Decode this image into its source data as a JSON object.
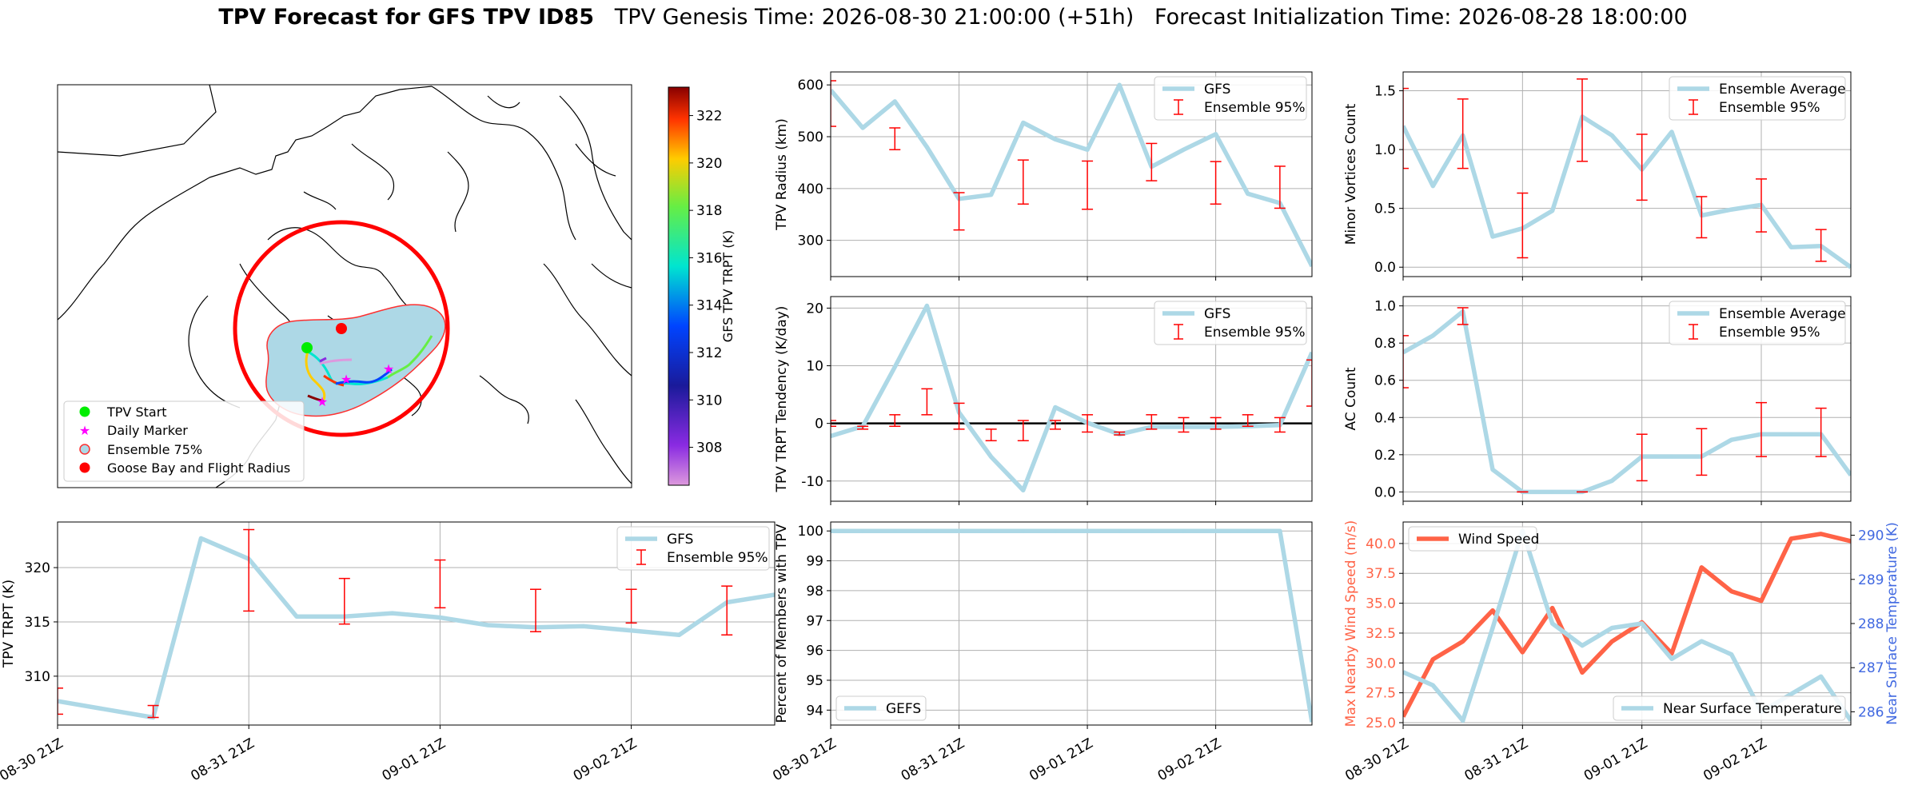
{
  "figure": {
    "title_bold": "TPV Forecast for GFS TPV ID85",
    "title_rest": "TPV Genesis Time: 2026-08-30 21:00:00 (+51h)   Forecast Initialization Time: 2026-08-28 18:00:00"
  },
  "colors": {
    "gfs_line": "#add8e6",
    "ensemble_bar": "#ff0000",
    "wind": "#ff6347",
    "temp_axis": "#4169e1",
    "circle": "#ff0000",
    "ensemble_fill": "#add8e6"
  },
  "time_ticks": [
    "08-30 21Z",
    "08-31 21Z",
    "09-01 21Z",
    "09-02 21Z"
  ],
  "map": {
    "colorbar_label": "GFS TPV TRPT (K)",
    "colorbar_ticks": [
      308,
      310,
      312,
      314,
      316,
      318,
      320,
      322
    ],
    "colorbar_range": [
      306.4,
      323.2
    ],
    "legend": [
      "TPV Start",
      "Daily Marker",
      "Ensemble 75%",
      "Goose Bay and Flight Radius"
    ]
  },
  "chart_data": [
    {
      "id": "radius",
      "type": "line",
      "ylabel": "TPV Radius (km)",
      "ylim": [
        230,
        625
      ],
      "yticks": [
        300,
        400,
        500,
        600
      ],
      "xlim": [
        0,
        15
      ],
      "grid": true,
      "legend_position": "top-right",
      "series": [
        {
          "name": "GFS",
          "x": [
            0,
            1,
            2,
            3,
            4,
            5,
            6,
            7,
            8,
            9,
            10,
            11,
            12,
            13,
            14,
            15
          ],
          "values": [
            590,
            517,
            568,
            480,
            380,
            388,
            527,
            495,
            475,
            600,
            442,
            475,
            505,
            390,
            372,
            250
          ]
        },
        {
          "name": "Ensemble 95%",
          "type": "errorbar",
          "x": [
            0,
            2,
            4,
            6,
            8,
            10,
            12,
            14
          ],
          "low": [
            520,
            475,
            320,
            370,
            360,
            415,
            370,
            362
          ],
          "high": [
            608,
            517,
            392,
            455,
            453,
            487,
            452,
            443
          ]
        }
      ]
    },
    {
      "id": "minor_vortices",
      "type": "line",
      "ylabel": "Minor Vortices Count",
      "ylim": [
        -0.08,
        1.66
      ],
      "yticks": [
        0.0,
        0.5,
        1.0,
        1.5
      ],
      "xlim": [
        0,
        15
      ],
      "grid": true,
      "legend_position": "top-right",
      "series": [
        {
          "name": "Ensemble Average",
          "x": [
            0,
            1,
            2,
            3,
            4,
            5,
            6,
            7,
            8,
            9,
            10,
            11,
            12,
            13,
            14,
            15
          ],
          "values": [
            1.2,
            0.69,
            1.12,
            0.26,
            0.33,
            0.48,
            1.28,
            1.12,
            0.83,
            1.15,
            0.44,
            0.49,
            0.53,
            0.17,
            0.18,
            0.0
          ]
        },
        {
          "name": "Ensemble 95%",
          "type": "errorbar",
          "x": [
            0,
            2,
            4,
            6,
            8,
            10,
            12,
            14
          ],
          "low": [
            0.84,
            0.84,
            0.08,
            0.9,
            0.57,
            0.25,
            0.3,
            0.05
          ],
          "high": [
            1.52,
            1.43,
            0.63,
            1.6,
            1.13,
            0.6,
            0.75,
            0.32
          ]
        }
      ]
    },
    {
      "id": "trpt_tendency",
      "type": "line",
      "ylabel": "TPV TRPT Tendency (K/day)",
      "ylim": [
        -13.5,
        22
      ],
      "yticks": [
        -10,
        0,
        10,
        20
      ],
      "xlim": [
        0,
        15
      ],
      "grid": true,
      "zero_line": true,
      "legend_position": "top-right",
      "series": [
        {
          "name": "GFS",
          "x": [
            0,
            1,
            2,
            3,
            4,
            5,
            6,
            7,
            8,
            9,
            10,
            11,
            12,
            13,
            14,
            15
          ],
          "values": [
            -2.2,
            -0.5,
            9.8,
            20.4,
            1.9,
            -5.8,
            -11.6,
            2.8,
            0.1,
            -1.9,
            -0.6,
            -0.6,
            -0.6,
            -0.5,
            -0.3,
            12.3
          ]
        },
        {
          "name": "Ensemble 95%",
          "type": "errorbar",
          "x": [
            0,
            1,
            2,
            3,
            4,
            5,
            6,
            7,
            8,
            9,
            10,
            11,
            12,
            13,
            14,
            15
          ],
          "low": [
            -0.5,
            -1.0,
            -0.5,
            1.5,
            -1.0,
            -3.0,
            -3.0,
            -1.0,
            -1.5,
            -2.0,
            -1.0,
            -1.5,
            -1.0,
            -0.5,
            -1.5,
            3.0
          ],
          "high": [
            0.5,
            -0.5,
            1.5,
            6.0,
            3.5,
            -1.0,
            0.5,
            0.5,
            1.5,
            -1.5,
            1.5,
            1.0,
            1.0,
            1.5,
            1.0,
            11.0
          ]
        }
      ]
    },
    {
      "id": "ac_count",
      "type": "line",
      "ylabel": "AC Count",
      "ylim": [
        -0.05,
        1.05
      ],
      "yticks": [
        0.0,
        0.2,
        0.4,
        0.6,
        0.8,
        1.0
      ],
      "xlim": [
        0,
        15
      ],
      "grid": true,
      "legend_position": "top-right",
      "series": [
        {
          "name": "Ensemble Average",
          "x": [
            0,
            1,
            2,
            3,
            4,
            5,
            6,
            7,
            8,
            9,
            10,
            11,
            12,
            13,
            14,
            15
          ],
          "values": [
            0.75,
            0.84,
            0.97,
            0.12,
            0.0,
            0.0,
            0.0,
            0.06,
            0.19,
            0.19,
            0.19,
            0.28,
            0.31,
            0.31,
            0.31,
            0.09
          ]
        },
        {
          "name": "Ensemble 95%",
          "type": "errorbar",
          "x": [
            0,
            2,
            4,
            6,
            8,
            10,
            12,
            14
          ],
          "low": [
            0.56,
            0.9,
            0.0,
            0.0,
            0.06,
            0.09,
            0.19,
            0.19
          ],
          "high": [
            0.84,
            0.99,
            0.0,
            0.0,
            0.31,
            0.34,
            0.48,
            0.45
          ]
        }
      ]
    },
    {
      "id": "tpv_trpt",
      "type": "line",
      "ylabel": "TPV TRPT (K)",
      "ylim": [
        305.5,
        324.2
      ],
      "yticks": [
        310,
        315,
        320
      ],
      "xlim": [
        0,
        15
      ],
      "grid": true,
      "legend_position": "top-right",
      "series": [
        {
          "name": "GFS",
          "x": [
            0,
            2,
            3,
            4,
            5,
            6,
            7,
            8,
            9,
            10,
            11,
            12,
            13,
            14,
            15
          ],
          "values": [
            307.7,
            306.2,
            322.7,
            320.8,
            315.5,
            315.5,
            315.8,
            315.4,
            314.7,
            314.5,
            314.6,
            314.2,
            313.8,
            316.8,
            317.5
          ]
        },
        {
          "name": "Ensemble 95%",
          "type": "errorbar",
          "x": [
            0,
            2,
            4,
            6,
            8,
            10,
            12,
            14
          ],
          "low": [
            306.5,
            306.2,
            316.0,
            314.8,
            316.3,
            314.1,
            314.9,
            313.8
          ],
          "high": [
            308.9,
            307.3,
            323.5,
            319.0,
            320.7,
            318.0,
            318.0,
            318.3
          ]
        }
      ]
    },
    {
      "id": "percent_members",
      "type": "line",
      "ylabel": "Percent of Members with TPV",
      "ylim": [
        93.5,
        100.3
      ],
      "yticks": [
        94,
        95,
        96,
        97,
        98,
        99,
        100
      ],
      "xlim": [
        0,
        15
      ],
      "grid": true,
      "legend_position": "bottom-left",
      "series": [
        {
          "name": "GEFS",
          "x": [
            0,
            1,
            2,
            3,
            4,
            5,
            6,
            7,
            8,
            9,
            10,
            11,
            12,
            13,
            14,
            15
          ],
          "values": [
            100,
            100,
            100,
            100,
            100,
            100,
            100,
            100,
            100,
            100,
            100,
            100,
            100,
            100,
            100,
            93.6
          ]
        }
      ]
    },
    {
      "id": "wind_temp",
      "type": "line",
      "ylabel": "Max Nearby Wind Speed (m/s)",
      "ylabel_right": "Near Surface Temperature (K)",
      "ylim": [
        24.8,
        41.8
      ],
      "yticks": [
        25.0,
        27.5,
        30.0,
        32.5,
        35.0,
        37.5,
        40.0
      ],
      "ylim_right": [
        285.7,
        290.3
      ],
      "yticks_right": [
        286,
        287,
        288,
        289,
        290
      ],
      "xlim": [
        0,
        15
      ],
      "grid": true,
      "series": [
        {
          "name": "Wind Speed",
          "axis": "left",
          "x": [
            0,
            1,
            2,
            3,
            4,
            5,
            6,
            7,
            8,
            9,
            10,
            11,
            12,
            13,
            14,
            15
          ],
          "values": [
            25.5,
            30.3,
            31.8,
            34.4,
            30.9,
            34.6,
            29.2,
            31.8,
            33.4,
            30.8,
            38.0,
            36.0,
            35.2,
            40.4,
            40.8,
            40.2
          ]
        },
        {
          "name": "Near Surface Temperature",
          "axis": "right",
          "x": [
            0,
            1,
            2,
            3,
            4,
            5,
            6,
            7,
            8,
            9,
            10,
            11,
            12,
            13,
            14,
            15
          ],
          "values": [
            286.9,
            286.6,
            285.8,
            287.9,
            290.1,
            288.0,
            287.5,
            287.9,
            288.0,
            287.2,
            287.6,
            287.3,
            286.0,
            286.4,
            286.8,
            285.8
          ]
        }
      ]
    }
  ]
}
